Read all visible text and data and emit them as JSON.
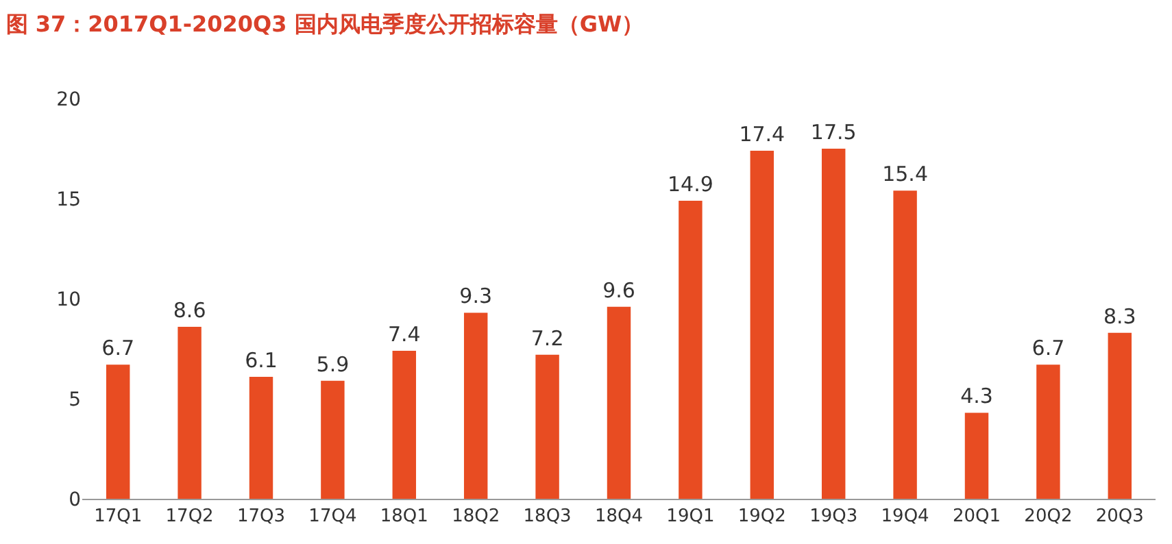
{
  "chart_data": {
    "type": "bar",
    "title": "图 37：2017Q1-2020Q3 国内风电季度公开招标容量（GW）",
    "categories": [
      "17Q1",
      "17Q2",
      "17Q3",
      "17Q4",
      "18Q1",
      "18Q2",
      "18Q3",
      "18Q4",
      "19Q1",
      "19Q2",
      "19Q3",
      "19Q4",
      "20Q1",
      "20Q2",
      "20Q3"
    ],
    "values": [
      6.7,
      8.6,
      6.1,
      5.9,
      7.4,
      9.3,
      7.2,
      9.6,
      14.9,
      17.4,
      17.5,
      15.4,
      4.3,
      6.7,
      8.3
    ],
    "color": "#e84c22",
    "ylim": [
      0,
      20
    ],
    "yticks": [
      0,
      5,
      10,
      15,
      20
    ],
    "data_labels": true
  }
}
